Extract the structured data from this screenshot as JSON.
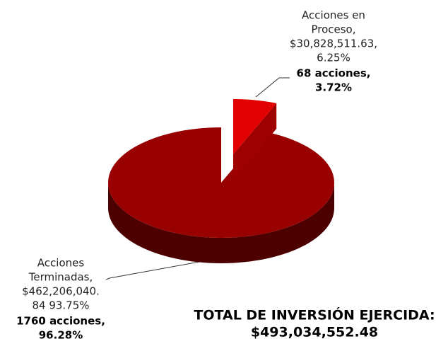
{
  "chart_data": {
    "type": "pie",
    "categories": [
      "Acciones en Proceso",
      "Acciones Terminadas"
    ],
    "values": [
      6.25,
      93.75
    ],
    "colors": [
      "#e30000",
      "#990000"
    ],
    "label_lines": [
      [
        "Acciones en",
        "Proceso,",
        "$30,828,511.63,",
        "6.25%"
      ],
      [
        "Acciones",
        "Terminadas,",
        "$462,206,040.",
        "84 93.75%"
      ]
    ],
    "bold_lines": [
      [
        "68 acciones,",
        "3.72%"
      ],
      [
        "1760 acciones,",
        "96.28%"
      ]
    ],
    "total": [
      "TOTAL DE INVERSIÓN EJERCIDA:",
      "$493,034,552.48"
    ]
  }
}
